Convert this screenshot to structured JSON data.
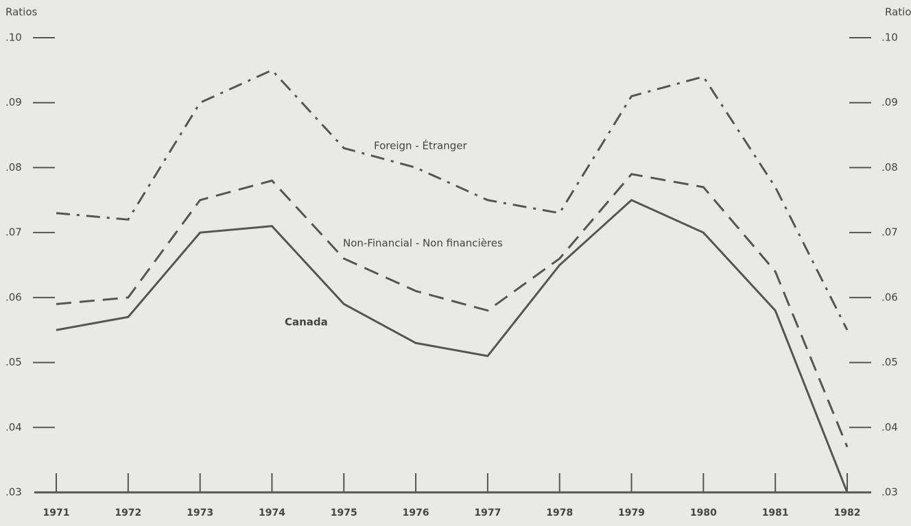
{
  "chart_data": {
    "type": "line",
    "ylabel": "Ratios",
    "y2label": "Ratios",
    "categories": [
      "1971",
      "1972",
      "1973",
      "1974",
      "1975",
      "1976",
      "1977",
      "1978",
      "1979",
      "1980",
      "1981",
      "1982"
    ],
    "series": [
      {
        "name": "Foreign - Étranger",
        "color": "#555555",
        "linestyle": "dashdot",
        "values": [
          0.073,
          0.072,
          0.09,
          0.095,
          0.083,
          0.08,
          0.075,
          0.073,
          0.091,
          0.094,
          0.077,
          0.055
        ]
      },
      {
        "name": "Non-Financial - Non financières",
        "color": "#555555",
        "linestyle": "dashed",
        "values": [
          0.059,
          0.06,
          0.075,
          0.078,
          0.066,
          0.061,
          0.058,
          0.066,
          0.079,
          0.077,
          0.064,
          0.037
        ]
      },
      {
        "name": "Canada",
        "color": "#555555",
        "linestyle": "solid",
        "values": [
          0.055,
          0.057,
          0.07,
          0.071,
          0.059,
          0.053,
          0.051,
          0.065,
          0.075,
          0.07,
          0.058,
          0.03
        ]
      }
    ],
    "ylim": [
      0.03,
      0.1
    ],
    "yticks": [
      {
        "value": 0.03,
        "label": ".03"
      },
      {
        "value": 0.04,
        "label": ".04"
      },
      {
        "value": 0.05,
        "label": ".05"
      },
      {
        "value": 0.06,
        "label": ".06"
      },
      {
        "value": 0.07,
        "label": ".07"
      },
      {
        "value": 0.08,
        "label": ".08"
      },
      {
        "value": 0.09,
        "label": ".09"
      },
      {
        "value": 0.1,
        "label": ".10"
      }
    ],
    "grid": false
  }
}
